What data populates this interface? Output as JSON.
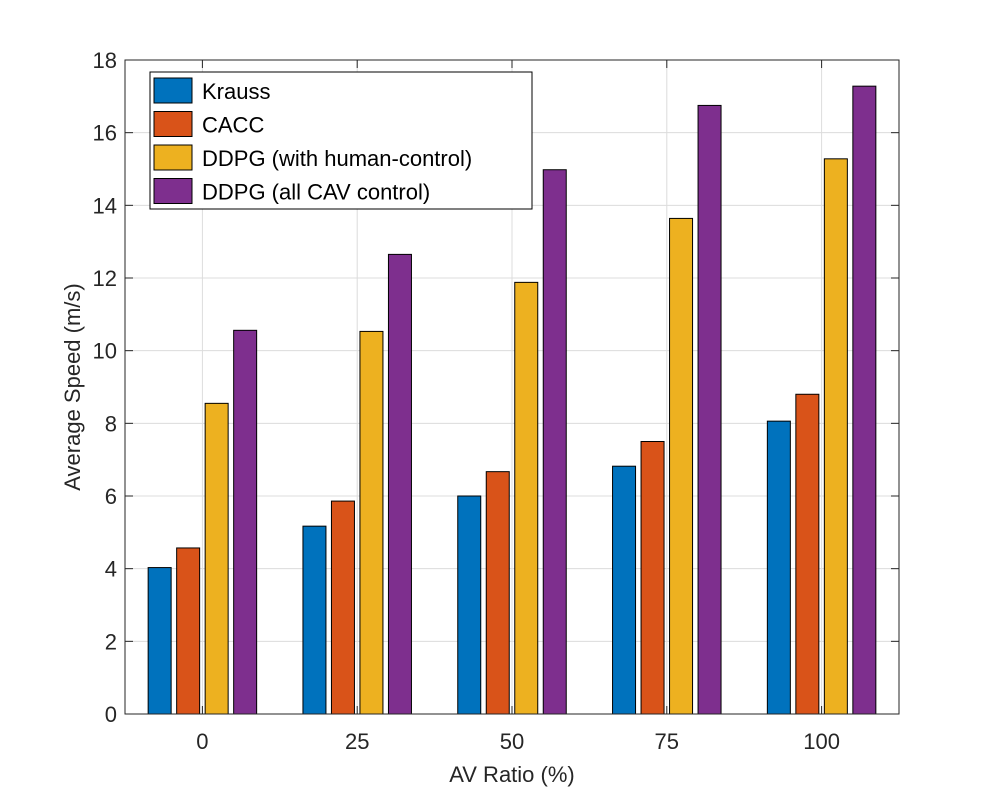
{
  "chart_data": {
    "type": "bar",
    "title": "",
    "xlabel": "AV Ratio (%)",
    "ylabel": "Average Speed (m/s)",
    "categories": [
      "0",
      "25",
      "50",
      "75",
      "100"
    ],
    "ylim": [
      0,
      18
    ],
    "yticks": [
      0,
      2,
      4,
      6,
      8,
      10,
      12,
      14,
      16,
      18
    ],
    "grid": true,
    "legend_position": "top-left",
    "series": [
      {
        "name": "Krauss",
        "color": "#0072BD",
        "values": [
          4.03,
          5.17,
          6.0,
          6.82,
          8.06
        ]
      },
      {
        "name": "CACC",
        "color": "#D95319",
        "values": [
          4.57,
          5.86,
          6.67,
          7.5,
          8.8
        ]
      },
      {
        "name": "DDPG (with human-control)",
        "color": "#EDB120",
        "values": [
          8.55,
          10.53,
          11.88,
          13.64,
          15.28
        ]
      },
      {
        "name": "DDPG (all CAV control)",
        "color": "#7E2F8E",
        "values": [
          10.56,
          12.65,
          14.98,
          16.75,
          17.28
        ]
      }
    ]
  }
}
